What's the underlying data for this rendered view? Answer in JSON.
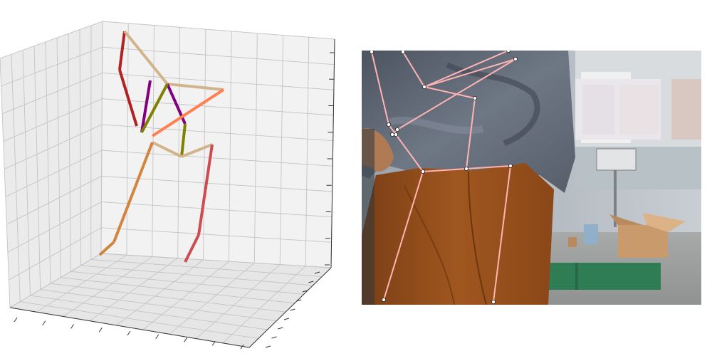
{
  "figure": {
    "left_panel": "3d-pose-plot",
    "right_panel": "photo-with-2d-skeleton"
  },
  "colors": {
    "pane": "#f2f2f2",
    "pane_side": "#ebebeb",
    "pane_floor": "#e6e6e6",
    "grid": "#c4c4c4",
    "axis": "#333333",
    "skeleton_2d": "#ffb3b3",
    "joint_fill": "#ffffff",
    "limb_torso": "#d2b48c",
    "limb_arm_left": "#b22222",
    "limb_arm_right": "#d0505a",
    "limb_leg_left": "#d2853f",
    "limb_leg_right": "#cd4c50",
    "limb_head": "#800080",
    "limb_neck": "#808000",
    "limb_shoulder": "#ff7f50"
  },
  "skeleton_3d": {
    "limbs": [
      {
        "name": "left-forearm",
        "color_key": "limb_arm_left"
      },
      {
        "name": "left-upper-arm",
        "color_key": "limb_arm_left"
      },
      {
        "name": "left-collar",
        "color_key": "limb_torso"
      },
      {
        "name": "right-collar",
        "color_key": "limb_torso"
      },
      {
        "name": "head-left",
        "color_key": "limb_head"
      },
      {
        "name": "head-right",
        "color_key": "limb_head"
      },
      {
        "name": "neck-upper",
        "color_key": "limb_neck"
      },
      {
        "name": "neck-lower",
        "color_key": "limb_neck"
      },
      {
        "name": "shoulder-line",
        "color_key": "limb_shoulder"
      },
      {
        "name": "left-hip",
        "color_key": "limb_torso"
      },
      {
        "name": "right-hip",
        "color_key": "limb_torso"
      },
      {
        "name": "left-thigh",
        "color_key": "limb_leg_left"
      },
      {
        "name": "left-shin",
        "color_key": "limb_leg_left"
      },
      {
        "name": "right-thigh",
        "color_key": "limb_leg_right"
      },
      {
        "name": "right-shin",
        "color_key": "limb_leg_right"
      }
    ]
  },
  "skeleton_2d": {
    "joint_count": 14,
    "bone_count": 15
  }
}
